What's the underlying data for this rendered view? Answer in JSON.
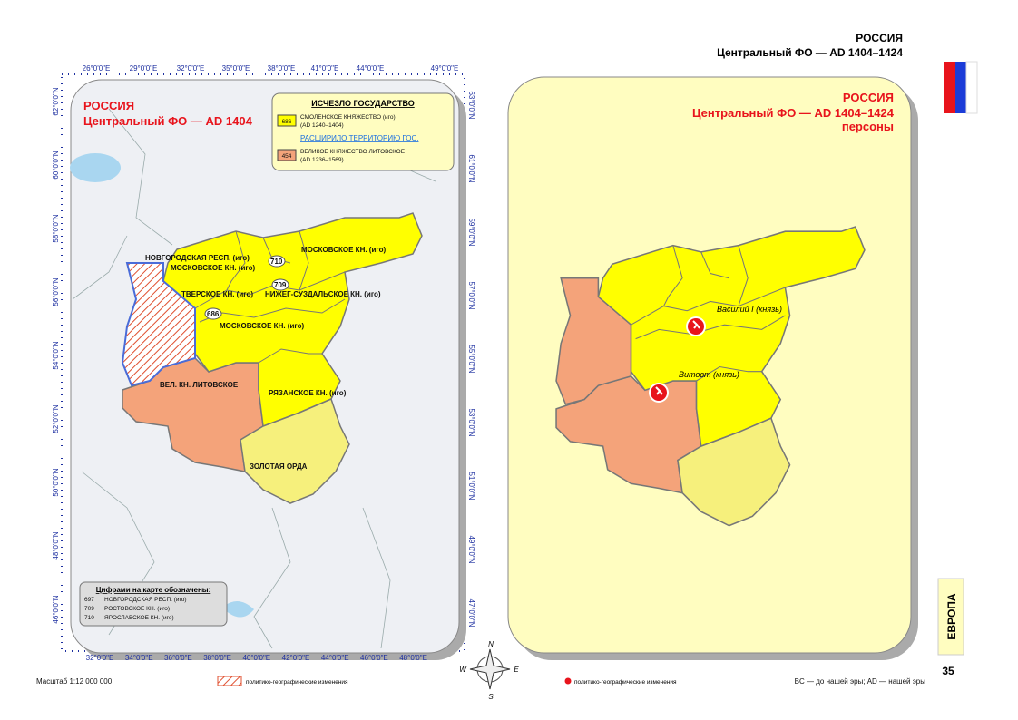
{
  "header": {
    "title": "РОССИЯ",
    "subtitle": "Центральный ФО — AD 1404–1424"
  },
  "left_map": {
    "title": "РОССИЯ",
    "subtitle": "Центральный ФО — AD 1404",
    "top_ticks": [
      "26°0'0\"E",
      "29°0'0\"E",
      "32°0'0\"E",
      "35°0'0\"E",
      "38°0'0\"E",
      "41°0'0\"E",
      "44°0'0\"E",
      "49°0'0\"E"
    ],
    "bottom_ticks": [
      "32°0'0\"E",
      "34°0'0\"E",
      "36°0'0\"E",
      "38°0'0\"E",
      "40°0'0\"E",
      "42°0'0\"E",
      "44°0'0\"E",
      "46°0'0\"E",
      "48°0'0\"E"
    ],
    "left_ticks": [
      "62°0'0\"N",
      "60°0'0\"N",
      "58°0'0\"N",
      "56°0'0\"N",
      "54°0'0\"N",
      "52°0'0\"N",
      "50°0'0\"N",
      "48°0'0\"N",
      "46°0'0\"N"
    ],
    "right_ticks": [
      "63°0'0\"N",
      "61°0'0\"N",
      "59°0'0\"N",
      "57°0'0\"N",
      "55°0'0\"N",
      "53°0'0\"N",
      "51°0'0\"N",
      "49°0'0\"N",
      "47°0'0\"N"
    ],
    "labels": [
      "МОСКОВСКОЕ КН. (иго)",
      "НОВГОРОДСКАЯ РЕСП. (иго)",
      "МОСКОВСКОЕ КН. (иго)",
      "710",
      "709",
      "ТВЕРСКОЕ КН. (иго)",
      "НИЖЕГ-СУЗДАЛЬСКОЕ КН. (иго)",
      "686",
      "МОСКОВСКОЕ КН. (иго)",
      "ВЕЛ. КН. ЛИТОВСКОЕ",
      "РЯЗАНСКОЕ КН. (иго)",
      "ЗОЛОТАЯ ОРДА"
    ]
  },
  "legend": {
    "title": "ИСЧЕЗЛО ГОСУДАРСТВО",
    "gone": {
      "code": "686",
      "name": "СМОЛЕНСКОЕ КНЯЖЕСТВО (иго)",
      "years": "(AD 1240–1404)"
    },
    "expanded_title": "РАСШИРИЛО ТЕРРИТОРИЮ ГОС.",
    "expanded": {
      "code": "454",
      "name": "ВЕЛИКОЕ КНЯЖЕСТВО ЛИТОВСКОЕ",
      "years": "(AD 1236–1569)"
    }
  },
  "numbers_box": {
    "title": "Цифрами на карте обозначены:",
    "rows": [
      [
        "697",
        "НОВГОРОДСКАЯ РЕСП. (иго)"
      ],
      [
        "709",
        "РОСТОВСКОЕ КН. (иго)"
      ],
      [
        "710",
        "ЯРОСЛАВСКОЕ КН. (иго)"
      ]
    ]
  },
  "right_map": {
    "title": "РОССИЯ",
    "subtitle": "Центральный ФО — AD 1404–1424",
    "note": "персоны",
    "persons": [
      "Василий I (князь)",
      "Витовт (князь)"
    ]
  },
  "compass": [
    "N",
    "W",
    "E",
    "S"
  ],
  "footer": {
    "scale": "Масштаб 1:12 000 000",
    "hatch_legend": "политико-географические изменения",
    "dot_legend": "политико-географические изменения",
    "era_note": "BC — до нашей эры; AD — нашей эры"
  },
  "tab": {
    "section": "ЕВРОПА",
    "page": "35"
  }
}
